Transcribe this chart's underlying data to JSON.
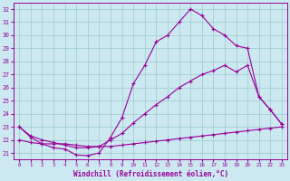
{
  "xlabel": "Windchill (Refroidissement éolien,°C)",
  "background_color": "#cce8f0",
  "grid_color": "#99cccc",
  "line_color": "#990099",
  "ylim": [
    20.5,
    32.5
  ],
  "xlim": [
    -0.5,
    23.5
  ],
  "yticks": [
    21,
    22,
    23,
    24,
    25,
    26,
    27,
    28,
    29,
    30,
    31,
    32
  ],
  "xticks": [
    0,
    1,
    2,
    3,
    4,
    5,
    6,
    7,
    8,
    9,
    10,
    11,
    12,
    13,
    14,
    15,
    16,
    17,
    18,
    19,
    20,
    21,
    22,
    23
  ],
  "line1_x": [
    0,
    1,
    2,
    3,
    4,
    5,
    6,
    7,
    8,
    9,
    10,
    11,
    12,
    13,
    14,
    15,
    16,
    17,
    18,
    19,
    20,
    21,
    22,
    23
  ],
  "line1_y": [
    23.0,
    22.2,
    21.7,
    21.4,
    21.3,
    20.85,
    20.8,
    21.0,
    22.2,
    23.7,
    26.3,
    27.7,
    29.5,
    30.0,
    31.0,
    32.0,
    31.5,
    30.5,
    30.0,
    29.2,
    29.0,
    25.3,
    24.3,
    23.2
  ],
  "line2_x": [
    0,
    1,
    2,
    3,
    4,
    5,
    6,
    7,
    8,
    9,
    10,
    11,
    12,
    13,
    14,
    15,
    16,
    17,
    18,
    19,
    20,
    21,
    22,
    23
  ],
  "line2_y": [
    23.0,
    22.3,
    22.0,
    21.8,
    21.6,
    21.4,
    21.4,
    21.5,
    22.0,
    22.5,
    23.3,
    24.0,
    24.7,
    25.3,
    26.0,
    26.5,
    27.0,
    27.3,
    27.7,
    27.2,
    27.7,
    25.3,
    24.3,
    23.2
  ],
  "line3_x": [
    0,
    1,
    2,
    3,
    4,
    5,
    6,
    7,
    8,
    9,
    10,
    11,
    12,
    13,
    14,
    15,
    16,
    17,
    18,
    19,
    20,
    21,
    22,
    23
  ],
  "line3_y": [
    22.0,
    21.8,
    21.7,
    21.7,
    21.7,
    21.6,
    21.5,
    21.5,
    21.5,
    21.6,
    21.7,
    21.8,
    21.9,
    22.0,
    22.1,
    22.2,
    22.3,
    22.4,
    22.5,
    22.6,
    22.7,
    22.8,
    22.9,
    23.0
  ]
}
